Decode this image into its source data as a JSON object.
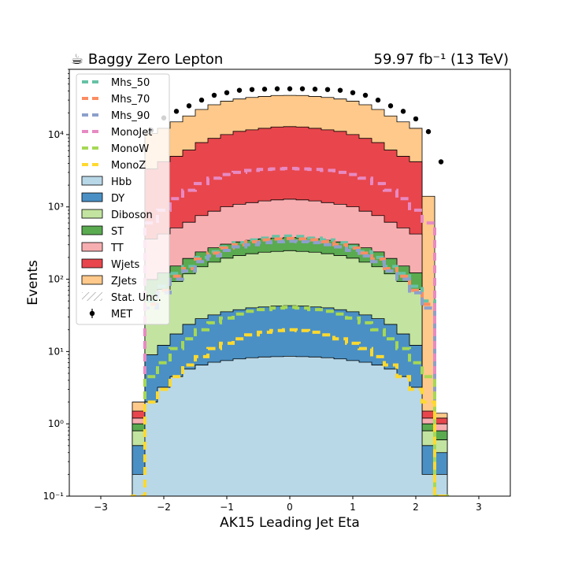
{
  "chart_data": {
    "type": "bar",
    "stacked": true,
    "title_left": "☕ Baggy Zero Lepton",
    "title_right": "59.97 fb⁻¹ (13 TeV)",
    "xlabel": "AK15 Leading Jet Eta",
    "ylabel": "Events",
    "xlim": [
      -3.5,
      3.5
    ],
    "ylim": [
      0.1,
      80000
    ],
    "yscale": "log",
    "xticks": [
      -3,
      -2,
      -1,
      0,
      1,
      2,
      3
    ],
    "xtick_labels": [
      "−3",
      "−2",
      "−1",
      "0",
      "1",
      "2",
      "3"
    ],
    "yticks": [
      0.1,
      1,
      10,
      100,
      1000,
      10000
    ],
    "ytick_labels": [
      "10⁻¹",
      "10⁰",
      "10¹",
      "10²",
      "10³",
      "10⁴"
    ],
    "bin_edges": [
      -2.5,
      -2.3,
      -2.1,
      -1.9,
      -1.7,
      -1.5,
      -1.3,
      -1.1,
      -0.9,
      -0.7,
      -0.5,
      -0.3,
      -0.1,
      0.1,
      0.3,
      0.5,
      0.7,
      0.9,
      1.1,
      1.3,
      1.5,
      1.7,
      1.9,
      2.1,
      2.3,
      2.5
    ],
    "legend_position": "upper-left",
    "stack": [
      {
        "name": "Hbb",
        "color": "#b8d8e8",
        "values": [
          0.2,
          2.0,
          3.2,
          4.5,
          5.7,
          6.5,
          7.1,
          7.5,
          7.9,
          8.2,
          8.4,
          8.5,
          8.6,
          8.5,
          8.4,
          8.2,
          7.9,
          7.5,
          7.1,
          6.5,
          5.7,
          4.5,
          3.2,
          0.2,
          0.2
        ]
      },
      {
        "name": "DY",
        "color": "#4a90c4",
        "values": [
          0.3,
          7.0,
          9.0,
          13.0,
          18.0,
          22.0,
          25.0,
          28.0,
          30.0,
          32.0,
          33.0,
          34.0,
          34.5,
          34.0,
          33.0,
          32.0,
          30.0,
          28.0,
          25.0,
          22.0,
          18.0,
          13.0,
          9.0,
          0.3,
          0.2
        ]
      },
      {
        "name": "Diboson",
        "color": "#c2e4a0",
        "values": [
          0.3,
          50.0,
          60.0,
          75.0,
          95.0,
          120.0,
          140.0,
          160.0,
          175.0,
          185.0,
          195.0,
          200.0,
          205.0,
          200.0,
          195.0,
          185.0,
          175.0,
          160.0,
          140.0,
          120.0,
          95.0,
          75.0,
          60.0,
          0.3,
          0.2
        ]
      },
      {
        "name": "ST",
        "color": "#5aaa50",
        "values": [
          0.2,
          40.0,
          50.0,
          60.0,
          75.0,
          90.0,
          100.0,
          110.0,
          115.0,
          120.0,
          125.0,
          128.0,
          130.0,
          128.0,
          125.0,
          120.0,
          115.0,
          110.0,
          100.0,
          90.0,
          75.0,
          60.0,
          50.0,
          0.2,
          0.2
        ]
      },
      {
        "name": "TT",
        "color": "#f7aeb0",
        "values": [
          0.2,
          260.0,
          300.0,
          360.0,
          420.0,
          520.0,
          600.0,
          700.0,
          760.0,
          800.0,
          850.0,
          880.0,
          900.0,
          880.0,
          850.0,
          800.0,
          760.0,
          700.0,
          600.0,
          520.0,
          420.0,
          360.0,
          300.0,
          0.2,
          0.2
        ]
      },
      {
        "name": "Wjets",
        "color": "#e8464c",
        "values": [
          0.3,
          3000.0,
          3800.0,
          4500.0,
          5500.0,
          7000.0,
          8000.0,
          9000.0,
          10000.0,
          10500.0,
          11000.0,
          11500.0,
          11600.0,
          11500.0,
          11000.0,
          10500.0,
          10000.0,
          9000.0,
          8000.0,
          7000.0,
          5500.0,
          4500.0,
          3800.0,
          0.3,
          0.2
        ]
      },
      {
        "name": "ZJets",
        "color": "#fec98a",
        "values": [
          0.5,
          7000.0,
          8000.0,
          10000.0,
          12000.0,
          14500.0,
          17000.0,
          19000.0,
          20000.0,
          21000.0,
          21500.0,
          22000.0,
          22000.0,
          22000.0,
          21500.0,
          21000.0,
          20000.0,
          19000.0,
          17000.0,
          14500.0,
          12000.0,
          10000.0,
          8000.0,
          1400.0,
          0.2
        ]
      }
    ],
    "signals": [
      {
        "name": "Mhs_50",
        "color": "#66c2a5",
        "values": [
          0.1,
          50.0,
          80.0,
          120.0,
          150.0,
          200.0,
          240.0,
          280.0,
          320.0,
          350.0,
          370.0,
          390.0,
          395.0,
          390.0,
          370.0,
          350.0,
          320.0,
          280.0,
          240.0,
          200.0,
          150.0,
          120.0,
          80.0,
          50.0,
          0.1
        ]
      },
      {
        "name": "Mhs_70",
        "color": "#fc8d62",
        "values": [
          0.1,
          45.0,
          70.0,
          110.0,
          140.0,
          190.0,
          230.0,
          270.0,
          300.0,
          330.0,
          350.0,
          360.0,
          365.0,
          360.0,
          350.0,
          330.0,
          300.0,
          270.0,
          230.0,
          190.0,
          140.0,
          110.0,
          70.0,
          45.0,
          0.1
        ]
      },
      {
        "name": "Mhs_90",
        "color": "#8da0cb",
        "values": [
          0.1,
          40.0,
          65.0,
          100.0,
          130.0,
          175.0,
          210.0,
          250.0,
          280.0,
          300.0,
          320.0,
          330.0,
          335.0,
          330.0,
          320.0,
          300.0,
          280.0,
          250.0,
          210.0,
          175.0,
          130.0,
          100.0,
          65.0,
          40.0,
          0.1
        ]
      },
      {
        "name": "MonoJet",
        "color": "#e78ac3",
        "values": [
          0.1,
          600.0,
          900.0,
          1300.0,
          1700.0,
          2100.0,
          2500.0,
          2800.0,
          3000.0,
          3200.0,
          3300.0,
          3350.0,
          3400.0,
          3350.0,
          3300.0,
          3200.0,
          3000.0,
          2800.0,
          2500.0,
          2100.0,
          1700.0,
          1300.0,
          900.0,
          600.0,
          0.1
        ]
      },
      {
        "name": "MonoW",
        "color": "#a6d854",
        "values": [
          0.1,
          4.5,
          7.0,
          11.0,
          15.0,
          20.0,
          25.0,
          29.0,
          33.0,
          36.0,
          38.0,
          40.0,
          41.0,
          40.0,
          38.0,
          36.0,
          33.0,
          29.0,
          25.0,
          20.0,
          15.0,
          11.0,
          7.0,
          4.5,
          0.1
        ]
      },
      {
        "name": "MonoZ",
        "color": "#ffd92f",
        "values": [
          0.1,
          2.0,
          3.0,
          4.5,
          6.5,
          8.5,
          11.0,
          13.0,
          15.0,
          17.0,
          18.5,
          19.5,
          20.0,
          19.5,
          18.5,
          17.0,
          15.0,
          13.0,
          11.0,
          8.5,
          6.5,
          4.5,
          3.0,
          2.0,
          0.1
        ]
      }
    ],
    "extra_legend": [
      {
        "name": "Stat. Unc.",
        "kind": "hatch"
      },
      {
        "name": "MET",
        "kind": "data"
      }
    ],
    "data": {
      "name": "MET",
      "x": [
        -2.2,
        -2.0,
        -1.8,
        -1.6,
        -1.4,
        -1.2,
        -1.0,
        -0.8,
        -0.6,
        -0.4,
        -0.2,
        0.0,
        0.2,
        0.4,
        0.6,
        0.8,
        1.0,
        1.2,
        1.4,
        1.6,
        1.8,
        2.0,
        2.2,
        2.4
      ],
      "y": [
        11500,
        17000,
        21000,
        25000,
        30000,
        35000,
        38000,
        41000,
        42000,
        42500,
        43000,
        43000,
        43000,
        42500,
        42000,
        41000,
        38000,
        35000,
        30000,
        25000,
        21000,
        16500,
        11000,
        4200
      ]
    }
  }
}
